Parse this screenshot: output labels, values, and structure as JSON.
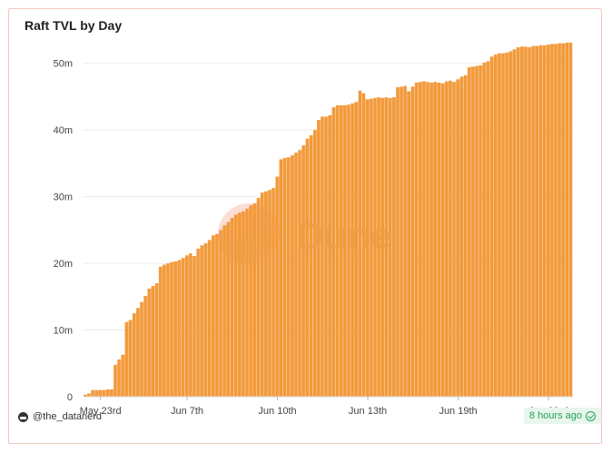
{
  "widget": {
    "author": "@the_datanerd",
    "updated": "8 hours ago",
    "watermark": "Dune",
    "colors": {
      "bar": "#f39a3a",
      "bar_edge": "#e27f15",
      "grid": "#ececec",
      "accent": "#27a35a"
    }
  },
  "chart_data": {
    "type": "bar",
    "title": "Raft TVL by Day",
    "xlabel": "",
    "ylabel": "",
    "ylim": [
      0,
      52000000
    ],
    "yticks": [
      0,
      10000000,
      20000000,
      30000000,
      40000000,
      50000000
    ],
    "ytick_labels": [
      "0",
      "10m",
      "20m",
      "30m",
      "40m",
      "50m"
    ],
    "xtick_labels": [
      {
        "label": "May 23rd",
        "index": 4
      },
      {
        "label": "Jun 7th",
        "index": 27
      },
      {
        "label": "Jun 10th",
        "index": 51
      },
      {
        "label": "Jun 13th",
        "index": 75
      },
      {
        "label": "Jun 19th",
        "index": 99
      },
      {
        "label": "Jun 23rd",
        "index": 123
      }
    ],
    "grid": true,
    "legend": "none",
    "series": [
      {
        "values": [
          0.3,
          0.5,
          1.0,
          1.0,
          1.0,
          1.0,
          1.1,
          1.1,
          4.8,
          5.6,
          6.3,
          11.2,
          11.5,
          12.5,
          13.3,
          14.2,
          15.1,
          16.2,
          16.6,
          17.0,
          19.5,
          19.8,
          20.0,
          20.2,
          20.3,
          20.5,
          20.8,
          21.2,
          21.5,
          21.1,
          22.2,
          22.7,
          23.0,
          23.5,
          24.2,
          24.4,
          25.0,
          25.7,
          26.2,
          26.8,
          27.3,
          27.6,
          27.8,
          28.2,
          28.7,
          29.0,
          29.8,
          30.6,
          30.8,
          31.0,
          31.3,
          33.0,
          35.6,
          35.8,
          35.9,
          36.2,
          36.6,
          37.0,
          37.7,
          38.7,
          39.2,
          40.0,
          41.5,
          42.0,
          42.0,
          42.2,
          43.4,
          43.7,
          43.7,
          43.7,
          43.8,
          44.0,
          44.2,
          45.9,
          45.5,
          44.6,
          44.7,
          44.8,
          44.9,
          44.8,
          44.9,
          44.8,
          44.9,
          46.4,
          46.5,
          46.6,
          45.8,
          46.5,
          47.1,
          47.2,
          47.3,
          47.2,
          47.1,
          47.2,
          47.1,
          47.0,
          47.3,
          47.4,
          47.2,
          47.6,
          48.0,
          48.2,
          49.4,
          49.5,
          49.6,
          49.7,
          50.1,
          50.3,
          51.0,
          51.3,
          51.5,
          51.5,
          51.6,
          51.8,
          52.1,
          52.4,
          52.5,
          52.5,
          52.4,
          52.6,
          52.6,
          52.7,
          52.7,
          52.8,
          52.9,
          52.9,
          53.0,
          53.0,
          53.1,
          53.1
        ]
      }
    ]
  }
}
